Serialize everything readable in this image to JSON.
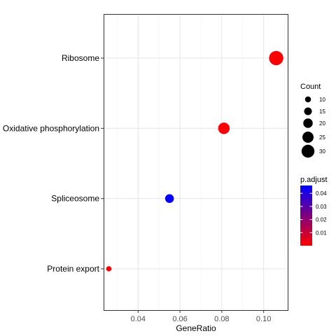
{
  "chart_data": {
    "type": "scatter",
    "categories": [
      "Ribosome",
      "Oxidative phosphorylation",
      "Spliceosome",
      "Protein export"
    ],
    "series": [
      {
        "points": [
          {
            "category": "Ribosome",
            "gene_ratio": 0.106,
            "count": 34,
            "p_adjust": 0.0002
          },
          {
            "category": "Oxidative phosphorylation",
            "gene_ratio": 0.081,
            "count": 26,
            "p_adjust": 0.0008
          },
          {
            "category": "Spliceosome",
            "gene_ratio": 0.055,
            "count": 18,
            "p_adjust": 0.045
          },
          {
            "category": "Protein export",
            "gene_ratio": 0.026,
            "count": 8,
            "p_adjust": 0.0015
          }
        ]
      }
    ],
    "xlabel": "GeneRatio",
    "ylabel": "",
    "xlim": [
      0.0235,
      0.1115
    ],
    "x_ticks": [
      0.04,
      0.06,
      0.08,
      0.1
    ],
    "x_tick_labels": [
      "0.04",
      "0.06",
      "0.08",
      "0.10"
    ],
    "grid": true,
    "size_legend": {
      "title": "Count",
      "breaks": [
        10,
        15,
        20,
        25,
        30
      ],
      "labels": [
        "10",
        "15",
        "20",
        "25",
        "30"
      ],
      "range": [
        8,
        34
      ]
    },
    "color_legend": {
      "title": "p.adjust",
      "breaks": [
        0.01,
        0.02,
        0.03,
        0.04
      ],
      "labels": [
        "0.01",
        "0.02",
        "0.03",
        "0.04"
      ],
      "range": [
        0.0,
        0.046
      ],
      "low_color": "#ff0000",
      "high_color": "#0000ff"
    }
  }
}
